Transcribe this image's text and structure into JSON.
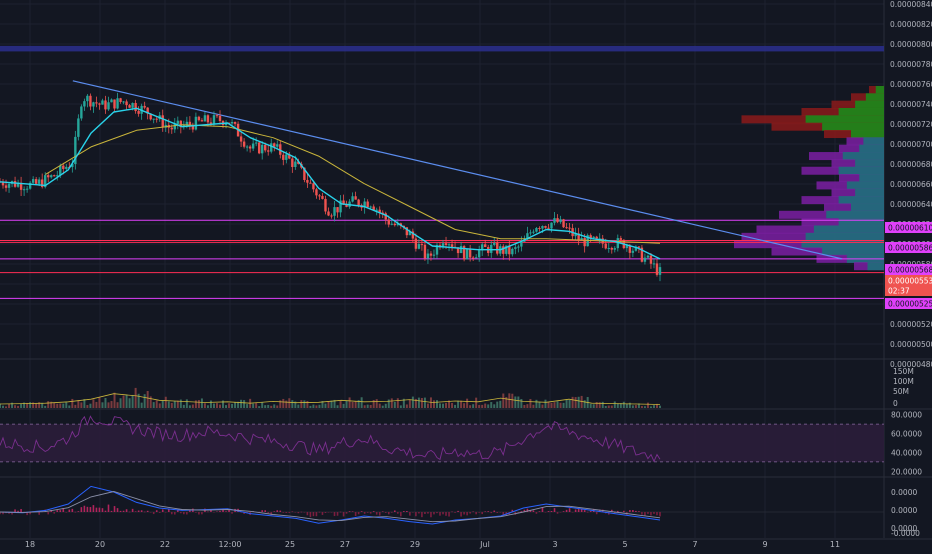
{
  "theme": {
    "background": "#131722",
    "grid": "#1e2230",
    "axis_text": "#b2b5be",
    "up": "#26a69a",
    "down": "#ef5350",
    "ema_fast": "#29d3ea",
    "ma_slow": "#c9b53b",
    "trendline": "#5b8def",
    "magenta_level": "#e040fb",
    "red_level": "#ff2d55",
    "purple_zone": "#2a2e88",
    "rsi_line": "#7b2f8f",
    "macd_line": "#2962ff",
    "signal_line": "#e65100"
  },
  "time_axis": {
    "labels": [
      "18",
      "20",
      "22",
      "12:00",
      "25",
      "27",
      "29",
      "Jul",
      "3",
      "5",
      "7",
      "9",
      "11"
    ]
  },
  "price_axis": {
    "labels": [
      "0.00000840",
      "0.00000820",
      "0.00000800",
      "0.00000780",
      "0.00000760",
      "0.00000740",
      "0.00000720",
      "0.00000700",
      "0.00000680",
      "0.00000660",
      "0.00000640",
      "0.00000620",
      "0.00000600",
      "0.00000580",
      "0.00000560",
      "0.00000540",
      "0.00000520",
      "0.00000500",
      "0.00000480"
    ]
  },
  "badges": [
    {
      "text": "0.00000610",
      "color": "#e040fb",
      "text_color": "#131722"
    },
    {
      "text": "0.00000586",
      "color": "#e040fb",
      "text_color": "#131722"
    },
    {
      "text": "0.00000568",
      "color": "#e040fb",
      "text_color": "#131722"
    },
    {
      "text": "0.00000553",
      "color": "#ef5350",
      "text_color": "#ffffff"
    },
    {
      "text": "02:37",
      "color": "#ef5350",
      "text_color": "#ffffff"
    },
    {
      "text": "0.00000525",
      "color": "#e040fb",
      "text_color": "#131722"
    }
  ],
  "volume_axis": {
    "labels": [
      "150M",
      "100M",
      "50M",
      "0"
    ]
  },
  "rsi_axis": {
    "labels": [
      "80.0000",
      "60.0000",
      "40.0000",
      "20.0000"
    ]
  },
  "macd_axis": {
    "labels": [
      "0.0000",
      "0.0000",
      "0.0000",
      "-0.0000"
    ]
  },
  "chart_data": {
    "type": "line",
    "title": "",
    "scale": {
      "price_range": [
        4.6e-06,
        8.5e-06
      ]
    },
    "price_path": [
      {
        "t": 0,
        "p": 6.52e-06
      },
      {
        "t": 1.5,
        "p": 6.48e-06
      },
      {
        "t": 2.5,
        "p": 6.6e-06
      },
      {
        "t": 3.2,
        "p": 6.75e-06
      },
      {
        "t": 3.6,
        "p": 7.45e-06
      },
      {
        "t": 4.5,
        "p": 7.35e-06
      },
      {
        "t": 5.5,
        "p": 7.4e-06
      },
      {
        "t": 6.5,
        "p": 7.28e-06
      },
      {
        "t": 7.5,
        "p": 7.1e-06
      },
      {
        "t": 9.0,
        "p": 7.18e-06
      },
      {
        "t": 10.0,
        "p": 7.2e-06
      },
      {
        "t": 11.0,
        "p": 6.88e-06
      },
      {
        "t": 12.0,
        "p": 6.9e-06
      },
      {
        "t": 13.0,
        "p": 6.7e-06
      },
      {
        "t": 14.5,
        "p": 6.2e-06
      },
      {
        "t": 15.5,
        "p": 6.3e-06
      },
      {
        "t": 16.3,
        "p": 6.3e-06
      },
      {
        "t": 17.0,
        "p": 6.1e-06
      },
      {
        "t": 18.0,
        "p": 5.95e-06
      },
      {
        "t": 18.8,
        "p": 5.68e-06
      },
      {
        "t": 19.5,
        "p": 5.92e-06
      },
      {
        "t": 20.5,
        "p": 5.72e-06
      },
      {
        "t": 21.5,
        "p": 5.8e-06
      },
      {
        "t": 22.5,
        "p": 5.75e-06
      },
      {
        "t": 23.0,
        "p": 5.85e-06
      },
      {
        "t": 23.5,
        "p": 6.05e-06
      },
      {
        "t": 24.5,
        "p": 6.08e-06
      },
      {
        "t": 25.5,
        "p": 5.88e-06
      },
      {
        "t": 26.5,
        "p": 5.85e-06
      },
      {
        "t": 27.5,
        "p": 5.85e-06
      },
      {
        "t": 28.5,
        "p": 5.65e-06
      },
      {
        "t": 29.0,
        "p": 5.53e-06
      }
    ],
    "indicators": {
      "ema_fast": [
        {
          "t": 0,
          "p": 6.52e-06
        },
        {
          "t": 2,
          "p": 6.48e-06
        },
        {
          "t": 3,
          "p": 6.65e-06
        },
        {
          "t": 4,
          "p": 7.05e-06
        },
        {
          "t": 5,
          "p": 7.28e-06
        },
        {
          "t": 6,
          "p": 7.32e-06
        },
        {
          "t": 7,
          "p": 7.22e-06
        },
        {
          "t": 8,
          "p": 7.12e-06
        },
        {
          "t": 9,
          "p": 7.14e-06
        },
        {
          "t": 10,
          "p": 7.16e-06
        },
        {
          "t": 11,
          "p": 7e-06
        },
        {
          "t": 12,
          "p": 6.9e-06
        },
        {
          "t": 13,
          "p": 6.78e-06
        },
        {
          "t": 14,
          "p": 6.45e-06
        },
        {
          "t": 15,
          "p": 6.28e-06
        },
        {
          "t": 16,
          "p": 6.25e-06
        },
        {
          "t": 17,
          "p": 6.15e-06
        },
        {
          "t": 18,
          "p": 5.98e-06
        },
        {
          "t": 19,
          "p": 5.82e-06
        },
        {
          "t": 20,
          "p": 5.8e-06
        },
        {
          "t": 21,
          "p": 5.78e-06
        },
        {
          "t": 22,
          "p": 5.78e-06
        },
        {
          "t": 23,
          "p": 5.88e-06
        },
        {
          "t": 24,
          "p": 6e-06
        },
        {
          "t": 25,
          "p": 5.98e-06
        },
        {
          "t": 26,
          "p": 5.9e-06
        },
        {
          "t": 27,
          "p": 5.87e-06
        },
        {
          "t": 28,
          "p": 5.8e-06
        },
        {
          "t": 29,
          "p": 5.68e-06
        }
      ],
      "ma_slow": [
        {
          "t": 2,
          "p": 6.6e-06
        },
        {
          "t": 4,
          "p": 6.9e-06
        },
        {
          "t": 6,
          "p": 7.08e-06
        },
        {
          "t": 8,
          "p": 7.14e-06
        },
        {
          "t": 10,
          "p": 7.12e-06
        },
        {
          "t": 12,
          "p": 7e-06
        },
        {
          "t": 14,
          "p": 6.8e-06
        },
        {
          "t": 16,
          "p": 6.5e-06
        },
        {
          "t": 18,
          "p": 6.25e-06
        },
        {
          "t": 20,
          "p": 6e-06
        },
        {
          "t": 22,
          "p": 5.9e-06
        },
        {
          "t": 24,
          "p": 5.9e-06
        },
        {
          "t": 26,
          "p": 5.88e-06
        },
        {
          "t": 28,
          "p": 5.86e-06
        },
        {
          "t": 29,
          "p": 5.85e-06
        }
      ],
      "trendline": [
        {
          "t": 3.2,
          "p": 7.62e-06
        },
        {
          "t": 37.0,
          "p": 5.68e-06
        }
      ],
      "horizontal_levels": [
        {
          "p": 6.1e-06,
          "kind": "magenta"
        },
        {
          "p": 5.88e-06,
          "kind": "red"
        },
        {
          "p": 5.86e-06,
          "kind": "red"
        },
        {
          "p": 5.68e-06,
          "kind": "magenta"
        },
        {
          "p": 5.53e-06,
          "kind": "red"
        },
        {
          "p": 5.25e-06,
          "kind": "magenta"
        }
      ],
      "zone": {
        "from": 7.94e-06,
        "to": 8e-06
      }
    },
    "volume_profile": [
      {
        "p": 7.52e-06,
        "v": 0.1,
        "tone": "down"
      },
      {
        "p": 7.44e-06,
        "v": 0.22,
        "tone": "down"
      },
      {
        "p": 7.36e-06,
        "v": 0.35,
        "tone": "down"
      },
      {
        "p": 7.28e-06,
        "v": 0.55,
        "tone": "down"
      },
      {
        "p": 7.2e-06,
        "v": 0.95,
        "tone": "down"
      },
      {
        "p": 7.12e-06,
        "v": 0.75,
        "tone": "down"
      },
      {
        "p": 7.04e-06,
        "v": 0.4,
        "tone": "down"
      },
      {
        "p": 6.96e-06,
        "v": 0.25,
        "tone": "purple"
      },
      {
        "p": 6.88e-06,
        "v": 0.3,
        "tone": "purple"
      },
      {
        "p": 6.8e-06,
        "v": 0.5,
        "tone": "purple"
      },
      {
        "p": 6.72e-06,
        "v": 0.35,
        "tone": "purple"
      },
      {
        "p": 6.64e-06,
        "v": 0.55,
        "tone": "purple"
      },
      {
        "p": 6.56e-06,
        "v": 0.3,
        "tone": "purple"
      },
      {
        "p": 6.48e-06,
        "v": 0.45,
        "tone": "purple"
      },
      {
        "p": 6.4e-06,
        "v": 0.35,
        "tone": "purple"
      },
      {
        "p": 6.32e-06,
        "v": 0.55,
        "tone": "purple"
      },
      {
        "p": 6.24e-06,
        "v": 0.4,
        "tone": "purple"
      },
      {
        "p": 6.16e-06,
        "v": 0.7,
        "tone": "purple"
      },
      {
        "p": 6.08e-06,
        "v": 0.55,
        "tone": "purple"
      },
      {
        "p": 6e-06,
        "v": 0.85,
        "tone": "purple"
      },
      {
        "p": 5.92e-06,
        "v": 0.95,
        "tone": "purple"
      },
      {
        "p": 5.84e-06,
        "v": 1.0,
        "tone": "purple"
      },
      {
        "p": 5.76e-06,
        "v": 0.75,
        "tone": "purple"
      },
      {
        "p": 5.68e-06,
        "v": 0.45,
        "tone": "purple"
      },
      {
        "p": 5.6e-06,
        "v": 0.2,
        "tone": "purple"
      }
    ],
    "volume_series": [
      18,
      20,
      22,
      28,
      40,
      65,
      55,
      35,
      30,
      25,
      28,
      22,
      30,
      24,
      26,
      35,
      28,
      30,
      38,
      25,
      32,
      28,
      45,
      30,
      26,
      40,
      22,
      20,
      18,
      16
    ],
    "rsi_series": [
      50,
      48,
      45,
      55,
      78,
      72,
      65,
      60,
      58,
      62,
      60,
      55,
      52,
      48,
      42,
      50,
      55,
      45,
      40,
      35,
      42,
      38,
      40,
      55,
      68,
      62,
      55,
      48,
      40,
      35
    ],
    "macd_series": [
      0.0,
      -0.01,
      0.02,
      0.1,
      0.32,
      0.25,
      0.12,
      0.05,
      0.02,
      0.03,
      0.04,
      -0.02,
      -0.05,
      -0.08,
      -0.14,
      -0.1,
      -0.05,
      -0.08,
      -0.12,
      -0.15,
      -0.1,
      -0.08,
      -0.05,
      0.05,
      0.1,
      0.06,
      0.02,
      -0.02,
      -0.06,
      -0.1
    ]
  }
}
